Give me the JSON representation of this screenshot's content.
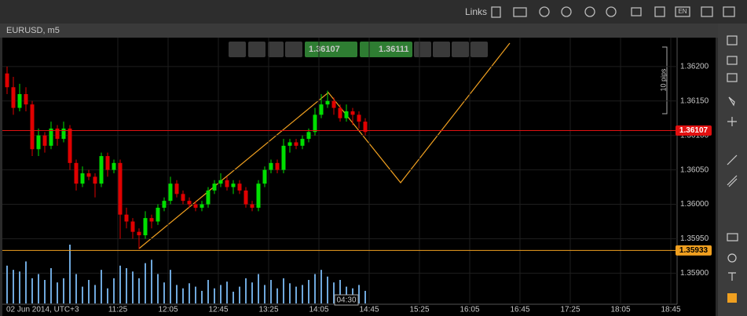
{
  "top_bar": {
    "links": "Links",
    "language": "EN"
  },
  "chart_header": {
    "title": "EURUSD, m5"
  },
  "quick_trade": {
    "sell": "1.36107",
    "buy": "1.36111"
  },
  "chart_data": {
    "type": "candlestick",
    "ylim": [
      1.35856,
      1.36242
    ],
    "yticks": [
      {
        "value": 1.359,
        "label": "1.35900"
      },
      {
        "value": 1.3595,
        "label": "1.35950"
      },
      {
        "value": 1.36,
        "label": "1.36000"
      },
      {
        "value": 1.3605,
        "label": "1.36050"
      },
      {
        "value": 1.361,
        "label": "1.36100"
      },
      {
        "value": 1.3615,
        "label": "1.36150"
      },
      {
        "value": 1.362,
        "label": "1.36200"
      }
    ],
    "x_start_label": "02 Jun 2014, UTC+3",
    "xticks": [
      "11:25",
      "12:05",
      "12:45",
      "13:25",
      "14:05",
      "14:45",
      "15:25",
      "16:05",
      "16:45",
      "17:25",
      "18:05",
      "18:45"
    ],
    "current_price": 1.36107,
    "current_color": "#e01010",
    "level": 1.35933,
    "level_color": "#f0a020",
    "up_color": "#00e000",
    "down_color": "#e00000",
    "pips_label": "10 pips",
    "cursor_time": "04:30",
    "grid": true,
    "candles": [
      [
        1.3619,
        1.362,
        1.3616,
        1.3617
      ],
      [
        1.3617,
        1.36185,
        1.3613,
        1.3614
      ],
      [
        1.3614,
        1.36175,
        1.36135,
        1.3616
      ],
      [
        1.3616,
        1.3617,
        1.36135,
        1.36145
      ],
      [
        1.36145,
        1.3615,
        1.3607,
        1.3608
      ],
      [
        1.3608,
        1.3611,
        1.3607,
        1.361
      ],
      [
        1.361,
        1.36105,
        1.36075,
        1.36085
      ],
      [
        1.36085,
        1.3612,
        1.3608,
        1.3611
      ],
      [
        1.3611,
        1.36115,
        1.36085,
        1.36095
      ],
      [
        1.36095,
        1.3612,
        1.3609,
        1.3611
      ],
      [
        1.3611,
        1.36115,
        1.3605,
        1.3606
      ],
      [
        1.3606,
        1.36065,
        1.3602,
        1.3603
      ],
      [
        1.3603,
        1.36055,
        1.36025,
        1.36045
      ],
      [
        1.36045,
        1.3605,
        1.36035,
        1.3604
      ],
      [
        1.3604,
        1.36045,
        1.3601,
        1.3603
      ],
      [
        1.3603,
        1.36075,
        1.36025,
        1.3607
      ],
      [
        1.3607,
        1.36075,
        1.3604,
        1.3605
      ],
      [
        1.3605,
        1.36065,
        1.36045,
        1.3606
      ],
      [
        1.3606,
        1.36065,
        1.3595,
        1.35985
      ],
      [
        1.35985,
        1.35995,
        1.35965,
        1.35975
      ],
      [
        1.35975,
        1.3598,
        1.3595,
        1.3596
      ],
      [
        1.3596,
        1.35965,
        1.35935,
        1.35955
      ],
      [
        1.35955,
        1.3599,
        1.3595,
        1.3598
      ],
      [
        1.3598,
        1.35985,
        1.35965,
        1.35975
      ],
      [
        1.35975,
        1.36,
        1.3597,
        1.35995
      ],
      [
        1.35995,
        1.3601,
        1.3599,
        1.36005
      ],
      [
        1.36005,
        1.3604,
        1.36,
        1.3603
      ],
      [
        1.3603,
        1.36035,
        1.3601,
        1.36015
      ],
      [
        1.36015,
        1.3602,
        1.36,
        1.36005
      ],
      [
        1.36005,
        1.3601,
        1.35995,
        1.36
      ],
      [
        1.36,
        1.36005,
        1.3599,
        1.35995
      ],
      [
        1.35995,
        1.36005,
        1.3599,
        1.36
      ],
      [
        1.36,
        1.36025,
        1.35995,
        1.3602
      ],
      [
        1.3602,
        1.36035,
        1.36015,
        1.3603
      ],
      [
        1.3603,
        1.36045,
        1.36025,
        1.36035
      ],
      [
        1.36035,
        1.3604,
        1.3602,
        1.36025
      ],
      [
        1.36025,
        1.36035,
        1.36015,
        1.3603
      ],
      [
        1.3603,
        1.36035,
        1.36015,
        1.3602
      ],
      [
        1.3602,
        1.36025,
        1.35995,
        1.36
      ],
      [
        1.36,
        1.36005,
        1.3599,
        1.35995
      ],
      [
        1.35995,
        1.36035,
        1.3599,
        1.3603
      ],
      [
        1.3603,
        1.36055,
        1.36025,
        1.3605
      ],
      [
        1.3605,
        1.36065,
        1.36045,
        1.3606
      ],
      [
        1.3606,
        1.36065,
        1.36045,
        1.3605
      ],
      [
        1.3605,
        1.36095,
        1.36045,
        1.36085
      ],
      [
        1.36085,
        1.36095,
        1.36075,
        1.3609
      ],
      [
        1.3609,
        1.36095,
        1.3608,
        1.36085
      ],
      [
        1.36085,
        1.361,
        1.3608,
        1.36095
      ],
      [
        1.36095,
        1.3611,
        1.3609,
        1.36105
      ],
      [
        1.36105,
        1.3614,
        1.361,
        1.3613
      ],
      [
        1.3613,
        1.3616,
        1.36125,
        1.36145
      ],
      [
        1.36145,
        1.36165,
        1.3614,
        1.3615
      ],
      [
        1.3615,
        1.36155,
        1.3613,
        1.3614
      ],
      [
        1.3614,
        1.36145,
        1.3612,
        1.36125
      ],
      [
        1.36125,
        1.36145,
        1.3612,
        1.36135
      ],
      [
        1.36135,
        1.3614,
        1.36115,
        1.3613
      ],
      [
        1.3613,
        1.36135,
        1.3611,
        1.3612
      ],
      [
        1.3612,
        1.36125,
        1.361,
        1.36105
      ]
    ],
    "volume_color": "#6fa8dc",
    "volumes": [
      45,
      40,
      38,
      50,
      30,
      35,
      28,
      42,
      25,
      30,
      70,
      35,
      20,
      28,
      22,
      40,
      18,
      30,
      45,
      42,
      38,
      30,
      48,
      52,
      35,
      25,
      40,
      22,
      18,
      24,
      20,
      15,
      28,
      18,
      22,
      26,
      14,
      20,
      30,
      25,
      35,
      22,
      28,
      18,
      30,
      24,
      20,
      22,
      28,
      35,
      40,
      32,
      25,
      28,
      20,
      18,
      22,
      15
    ]
  }
}
